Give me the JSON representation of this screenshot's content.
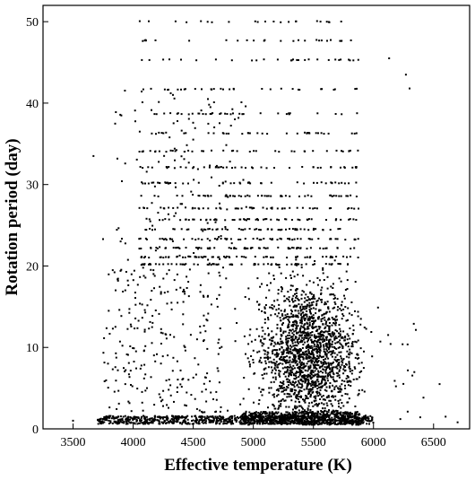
{
  "chart_data": {
    "type": "scatter",
    "title": "",
    "xlabel": "Effective temperature (K)",
    "ylabel": "Rotation period (day)",
    "xlim": [
      3250,
      6800
    ],
    "ylim": [
      0,
      52
    ],
    "xticks": [
      3500,
      4000,
      4500,
      5000,
      5500,
      6000,
      6500
    ],
    "yticks": [
      0,
      10,
      20,
      30,
      40,
      50
    ],
    "grid": false,
    "legend": "none",
    "marker_color": "#000000",
    "series": [
      {
        "description_of_distribution": [
          {
            "teff_range": [
              3500,
              6700
            ],
            "period_range": [
              0.5,
              1.5
            ],
            "density": "very dense band near 1 day"
          },
          {
            "teff_range": [
              4800,
              5900
            ],
            "period_range": [
              2,
              20
            ],
            "density": "dense main cloud centred near 5500 K, 10 days"
          },
          {
            "teff_range": [
              4000,
              5900
            ],
            "period_range": [
              20,
              50
            ],
            "density": "sparse, quantized in discrete period rows"
          },
          {
            "teff_range": [
              3750,
              4700
            ],
            "period_range": [
              2,
              20
            ],
            "density": "sparse scatter"
          },
          {
            "teff_range": [
              5900,
              6700
            ],
            "period_range": [
              0.5,
              45
            ],
            "density": "few outliers"
          }
        ],
        "notable_points": [
          {
            "x": 3500,
            "y": 1.0
          },
          {
            "x": 3670,
            "y": 33.5
          },
          {
            "x": 3750,
            "y": 23.3
          },
          {
            "x": 6130,
            "y": 45.5
          },
          {
            "x": 6270,
            "y": 43.5
          },
          {
            "x": 6300,
            "y": 41.8
          },
          {
            "x": 6550,
            "y": 5.5
          },
          {
            "x": 6600,
            "y": 1.5
          },
          {
            "x": 6700,
            "y": 0.8
          }
        ]
      }
    ]
  }
}
